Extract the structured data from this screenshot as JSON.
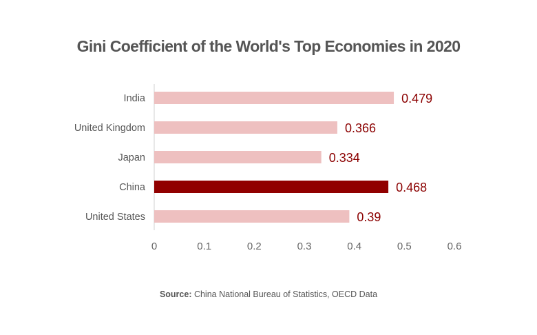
{
  "chart_data": {
    "type": "bar",
    "orientation": "horizontal",
    "title": "Gini Coefficient of the World's Top Economies in 2020",
    "categories": [
      "India",
      "United Kingdom",
      "Japan",
      "China",
      "United States"
    ],
    "values": [
      0.479,
      0.366,
      0.334,
      0.468,
      0.39
    ],
    "data_labels": [
      "0.479",
      "0.366",
      "0.334",
      "0.468",
      "0.39"
    ],
    "highlight": "China",
    "xlim": [
      0,
      0.6
    ],
    "xticks": [
      "0",
      "0.1",
      "0.2",
      "0.3",
      "0.4",
      "0.5",
      "0.6"
    ],
    "grid": false,
    "colors": {
      "default": "#eec0c0",
      "highlight": "#910000",
      "label": "#8b0000"
    }
  },
  "source": {
    "label": "Source:",
    "text": " China National Bureau of Statistics, OECD Data"
  }
}
